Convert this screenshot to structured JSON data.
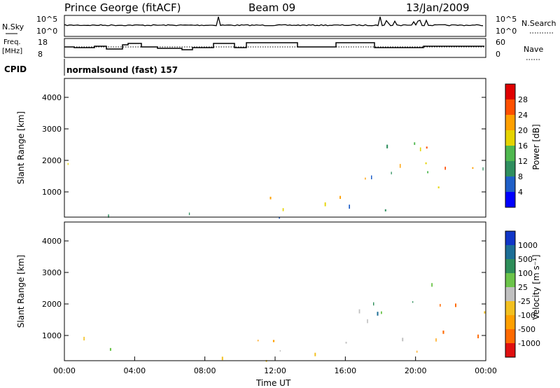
{
  "header": {
    "station": "Prince George (fitACF)",
    "beam": "Beam 09",
    "date": "13/Jan/2009"
  },
  "noise_panel": {
    "left_label": "N.Sky",
    "right_label": "N.Search",
    "left_ticks": [
      "10^5",
      "10^0"
    ],
    "right_ticks": [
      "10^5",
      "10^0"
    ]
  },
  "freq_panel": {
    "left_label_line1": "Freq.",
    "left_label_line2": "[MHz]",
    "right_label": "Nave",
    "left_ticks": [
      "18",
      "8"
    ],
    "right_ticks": [
      "60",
      "0"
    ]
  },
  "cpid": {
    "label": "CPID",
    "program": "normalsound (fast) 157"
  },
  "colors": {
    "power_scale": [
      "#0000ff",
      "#1f5fc8",
      "#2f8f5f",
      "#4fb84f",
      "#e6d400",
      "#ffa000",
      "#ff5000",
      "#e00000"
    ],
    "velocity_scale": [
      "#1036c8",
      "#1c6e96",
      "#2e8e5a",
      "#6cc44a",
      "#c0c0c0",
      "#f2c020",
      "#ffa000",
      "#ff6a00",
      "#e01010"
    ]
  },
  "chart_data": [
    {
      "type": "heatmap",
      "panel": "power",
      "ylabel": "Slant Range [km]",
      "yticks": [
        "1000",
        "2000",
        "3000",
        "4000"
      ],
      "colorbar_label": "Power [dB]",
      "colorbar_ticks": [
        "4",
        "8",
        "12",
        "16",
        "20",
        "24",
        "28"
      ],
      "ylim": [
        200,
        4600
      ],
      "zlim": [
        0,
        32
      ]
    },
    {
      "type": "heatmap",
      "panel": "velocity",
      "ylabel": "Slant Range [km]",
      "yticks": [
        "1000",
        "2000",
        "3000",
        "4000"
      ],
      "xticks": [
        "00:00",
        "04:00",
        "08:00",
        "12:00",
        "16:00",
        "20:00",
        "00:00"
      ],
      "xlabel": "Time UT",
      "colorbar_label": "Velocity [m s⁻¹]",
      "colorbar_ticks": [
        "1000",
        "500",
        "100",
        "25",
        "-25",
        "-100",
        "-500",
        "-1000"
      ],
      "ylim": [
        200,
        4600
      ],
      "xlim": [
        0,
        24
      ]
    }
  ]
}
